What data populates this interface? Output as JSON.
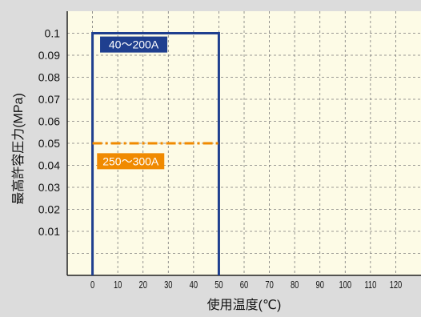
{
  "chart_data": {
    "type": "line",
    "xlabel": "使用温度(℃)",
    "ylabel": "最高許容圧力(MPa)",
    "xlim": [
      -10,
      130
    ],
    "ylim": [
      -0.01,
      0.11
    ],
    "x_ticks": [
      0,
      10,
      20,
      30,
      40,
      50,
      60,
      70,
      80,
      90,
      100,
      110,
      120
    ],
    "y_ticks": [
      0.01,
      0.02,
      0.03,
      0.04,
      0.05,
      0.06,
      0.07,
      0.08,
      0.09,
      0.1
    ],
    "grid": true,
    "series": [
      {
        "name": "40～200A",
        "color": "#1f3f8f",
        "line_style": "solid",
        "points": [
          [
            0,
            -0.01
          ],
          [
            0,
            0.1
          ],
          [
            50,
            0.1
          ],
          [
            50,
            -0.01
          ]
        ]
      },
      {
        "name": "250～300A",
        "color": "#f08a00",
        "line_style": "dash-dot",
        "points": [
          [
            0,
            0.05
          ],
          [
            50,
            0.05
          ]
        ]
      }
    ],
    "colors": {
      "background": "#dcdcdc",
      "plot_background": "#fdfbe6",
      "grid": "#7a7a7a",
      "axis": "#222222"
    }
  }
}
